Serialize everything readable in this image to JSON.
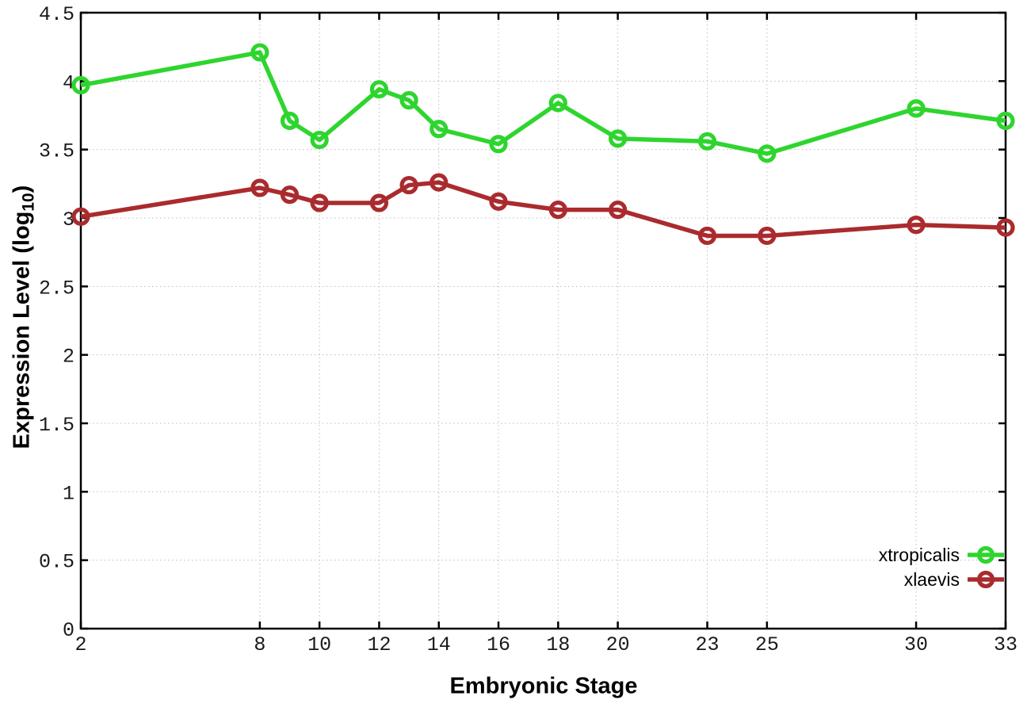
{
  "chart_data": {
    "type": "line",
    "title": "",
    "xlabel": "Embryonic Stage",
    "ylabel": "Expression Level (log10)",
    "ylabel_parts": {
      "main": "Expression Level (log",
      "sub": "10",
      "tail": ")"
    },
    "xlim": [
      2,
      33
    ],
    "ylim": [
      0,
      4.5
    ],
    "x_ticks": [
      "2",
      "8",
      "10",
      "12",
      "14",
      "16",
      "18",
      "20",
      "23",
      "25",
      "30",
      "33"
    ],
    "y_ticks": [
      "0",
      "0.5",
      "1",
      "1.5",
      "2",
      "2.5",
      "3",
      "3.5",
      "4",
      "4.5"
    ],
    "grid": true,
    "grid_style": "dotted",
    "legend_position": "bottom-right-inside",
    "x": [
      2,
      8,
      9,
      10,
      12,
      13,
      14,
      16,
      18,
      20,
      23,
      25,
      30,
      33
    ],
    "series": [
      {
        "name": "xtropicalis",
        "color": "#2ed52e",
        "marker": "open-circle",
        "values": [
          3.97,
          4.21,
          3.71,
          3.57,
          3.94,
          3.86,
          3.65,
          3.54,
          3.84,
          3.58,
          3.56,
          3.47,
          3.8,
          3.71
        ]
      },
      {
        "name": "xlaevis",
        "color": "#aa2b2e",
        "marker": "open-circle",
        "values": [
          3.01,
          3.22,
          3.17,
          3.11,
          3.11,
          3.24,
          3.26,
          3.12,
          3.06,
          3.06,
          2.87,
          2.87,
          2.95,
          2.93
        ]
      }
    ],
    "axis_color": "#000000",
    "grid_color": "#bcbcbc",
    "background": "#ffffff"
  }
}
